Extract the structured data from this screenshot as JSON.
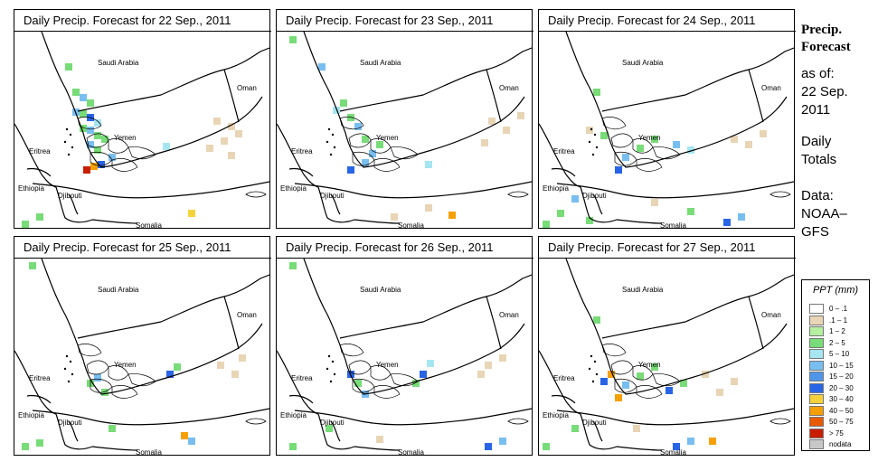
{
  "panels": [
    {
      "title": "Daily Precip. Forecast for  22 Sep., 2011",
      "cells": [
        [
          "green",
          72,
          70
        ],
        [
          "green",
          80,
          98
        ],
        [
          "lightblue",
          88,
          104
        ],
        [
          "green",
          96,
          110
        ],
        [
          "lightblue",
          80,
          120
        ],
        [
          "green",
          88,
          122
        ],
        [
          "blue",
          96,
          126
        ],
        [
          "cyan",
          104,
          132
        ],
        [
          "green",
          88,
          138
        ],
        [
          "lightblue",
          96,
          140
        ],
        [
          "green",
          104,
          146
        ],
        [
          "green",
          112,
          150
        ],
        [
          "lightblue",
          96,
          156
        ],
        [
          "green",
          104,
          162
        ],
        [
          "red",
          92,
          184
        ],
        [
          "orange",
          100,
          180
        ],
        [
          "blue",
          108,
          178
        ],
        [
          "lightblue",
          120,
          170
        ],
        [
          "tan",
          236,
          130
        ],
        [
          "tan",
          252,
          136
        ],
        [
          "tan",
          244,
          152
        ],
        [
          "tan",
          228,
          160
        ],
        [
          "tan",
          260,
          144
        ],
        [
          "tan",
          252,
          168
        ],
        [
          "green",
          24,
          244
        ],
        [
          "green",
          40,
          236
        ],
        [
          "cyan",
          180,
          158
        ],
        [
          "yellow",
          208,
          232
        ]
      ]
    },
    {
      "title": "Daily Precip. Forecast for  23 Sep., 2011",
      "cells": [
        [
          "green",
          320,
          40
        ],
        [
          "lightblue",
          352,
          70
        ],
        [
          "green",
          376,
          110
        ],
        [
          "green",
          384,
          126
        ],
        [
          "lightblue",
          392,
          136
        ],
        [
          "cyan",
          368,
          118
        ],
        [
          "green",
          400,
          150
        ],
        [
          "blue",
          384,
          184
        ],
        [
          "lightblue",
          400,
          176
        ],
        [
          "green",
          416,
          156
        ],
        [
          "lightblue",
          408,
          166
        ],
        [
          "tan",
          540,
          130
        ],
        [
          "tan",
          556,
          140
        ],
        [
          "tan",
          532,
          154
        ],
        [
          "tan",
          572,
          124
        ],
        [
          "orange",
          496,
          234
        ],
        [
          "tan",
          470,
          226
        ],
        [
          "cyan",
          470,
          178
        ],
        [
          "tan",
          432,
          236
        ]
      ]
    },
    {
      "title": "Daily Precip. Forecast for  24 Sep., 2011",
      "cells": [
        [
          "green",
          656,
          98
        ],
        [
          "tan",
          648,
          140
        ],
        [
          "green",
          664,
          146
        ],
        [
          "blue",
          680,
          184
        ],
        [
          "lightblue",
          688,
          170
        ],
        [
          "green",
          704,
          160
        ],
        [
          "green",
          720,
          150
        ],
        [
          "lightblue",
          744,
          156
        ],
        [
          "cyan",
          760,
          162
        ],
        [
          "tan",
          808,
          150
        ],
        [
          "tan",
          824,
          156
        ],
        [
          "tan",
          840,
          144
        ],
        [
          "green",
          616,
          232
        ],
        [
          "green",
          600,
          244
        ],
        [
          "lightblue",
          632,
          216
        ],
        [
          "green",
          648,
          240
        ],
        [
          "blue",
          800,
          242
        ],
        [
          "lightblue",
          816,
          236
        ],
        [
          "green",
          760,
          230
        ],
        [
          "tan",
          720,
          220
        ]
      ]
    },
    {
      "title": "Daily Precip. Forecast for  25 Sep., 2011",
      "cells": [
        [
          "green",
          32,
          290
        ],
        [
          "green",
          96,
          420
        ],
        [
          "lightblue",
          104,
          414
        ],
        [
          "green",
          112,
          430
        ],
        [
          "blue",
          184,
          410
        ],
        [
          "green",
          192,
          402
        ],
        [
          "tan",
          256,
          410
        ],
        [
          "tan",
          264,
          392
        ],
        [
          "tan",
          240,
          400
        ],
        [
          "green",
          24,
          490
        ],
        [
          "green",
          40,
          486
        ],
        [
          "lightblue",
          208,
          484
        ],
        [
          "orange",
          200,
          478
        ],
        [
          "green",
          120,
          470
        ]
      ]
    },
    {
      "title": "Daily Precip. Forecast for  26 Sep., 2011",
      "cells": [
        [
          "green",
          320,
          290
        ],
        [
          "blue",
          384,
          410
        ],
        [
          "green",
          392,
          420
        ],
        [
          "lightblue",
          400,
          432
        ],
        [
          "blue",
          464,
          410
        ],
        [
          "green",
          456,
          420
        ],
        [
          "cyan",
          472,
          398
        ],
        [
          "tan",
          536,
          400
        ],
        [
          "tan",
          552,
          392
        ],
        [
          "tan",
          528,
          410
        ],
        [
          "blue",
          536,
          490
        ],
        [
          "lightblue",
          552,
          484
        ],
        [
          "green",
          320,
          490
        ],
        [
          "tan",
          416,
          482
        ],
        [
          "green",
          360,
          470
        ]
      ]
    },
    {
      "title": "Daily Precip. Forecast for  27 Sep., 2011",
      "cells": [
        [
          "green",
          656,
          350
        ],
        [
          "orange",
          672,
          410
        ],
        [
          "blue",
          664,
          418
        ],
        [
          "orange",
          680,
          436
        ],
        [
          "lightblue",
          688,
          422
        ],
        [
          "green",
          704,
          412
        ],
        [
          "green",
          720,
          402
        ],
        [
          "blue",
          736,
          428
        ],
        [
          "green",
          752,
          420
        ],
        [
          "tan",
          776,
          410
        ],
        [
          "tan",
          792,
          430
        ],
        [
          "tan",
          808,
          418
        ],
        [
          "blue",
          744,
          490
        ],
        [
          "lightblue",
          760,
          484
        ],
        [
          "orange",
          784,
          484
        ],
        [
          "green",
          600,
          490
        ],
        [
          "green",
          632,
          470
        ],
        [
          "tan",
          700,
          470
        ]
      ]
    }
  ],
  "map_labels": {
    "saudi": "Saudi Arabia",
    "oman": "Oman",
    "yemen": "Yemen",
    "eritrea": "Eritrea",
    "ethiopia": "Ethiopia",
    "djibouti": "Djibouti",
    "somalia": "Somalia"
  },
  "side": {
    "title_line1": "Precip.",
    "title_line2": "Forecast",
    "asof": "as of:",
    "date1": "22 Sep.",
    "date2": "2011",
    "daily": "Daily",
    "totals": "Totals",
    "data": "Data:",
    "src1": "NOAA–",
    "src2": "GFS"
  },
  "legend": {
    "title": "PPT (mm)",
    "items": [
      {
        "label": "0 – .1",
        "color": "#ffffff"
      },
      {
        "label": ".1 – 1",
        "color": "#e8d5b5"
      },
      {
        "label": "1 – 2",
        "color": "#b4f0a0"
      },
      {
        "label": "2 – 5",
        "color": "#78dc78"
      },
      {
        "label": "5 – 10",
        "color": "#a6e6f0"
      },
      {
        "label": "10 – 15",
        "color": "#78bef0"
      },
      {
        "label": "15 – 20",
        "color": "#4f96eb"
      },
      {
        "label": "20 – 30",
        "color": "#2864e6"
      },
      {
        "label": "30 – 40",
        "color": "#f5d23c"
      },
      {
        "label": "40 – 50",
        "color": "#f5a000"
      },
      {
        "label": "50 – 75",
        "color": "#e65a00"
      },
      {
        "label": "> 75",
        "color": "#c81e00"
      },
      {
        "label": "nodata",
        "color": "#c8c8c8"
      }
    ]
  },
  "colors": {
    "tan": "#e8d5b5",
    "green": "#78dc78",
    "lightgreen": "#b4f0a0",
    "cyan": "#a6e6f0",
    "lightblue": "#78bef0",
    "blue": "#2864e6",
    "yellow": "#f5d23c",
    "orange": "#f5a000",
    "red": "#c81e00"
  }
}
